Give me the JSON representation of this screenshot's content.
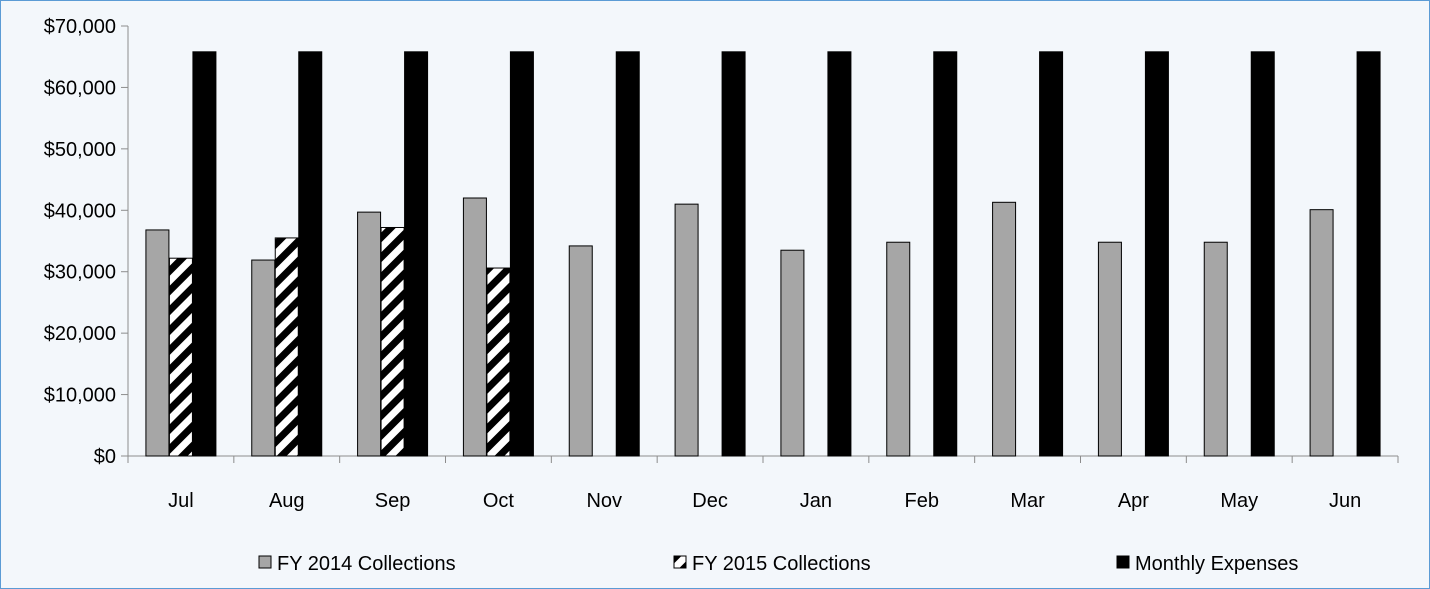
{
  "chart_data": {
    "type": "bar",
    "categories": [
      "Jul",
      "Aug",
      "Sep",
      "Oct",
      "Nov",
      "Dec",
      "Jan",
      "Feb",
      "Mar",
      "Apr",
      "May",
      "Jun"
    ],
    "series": [
      {
        "name": "FY 2014 Collections",
        "values": [
          36800,
          31900,
          39700,
          42000,
          34200,
          41000,
          33500,
          34800,
          41300,
          34800,
          34800,
          40100
        ],
        "color": "#a6a6a6",
        "pattern": "solid"
      },
      {
        "name": "FY 2015 Collections",
        "values": [
          32200,
          35500,
          37200,
          30600,
          null,
          null,
          null,
          null,
          null,
          null,
          null,
          null
        ],
        "color": "#000000",
        "pattern": "diagonal-stripes"
      },
      {
        "name": "Monthly Expenses",
        "values": [
          65800,
          65800,
          65800,
          65800,
          65800,
          65800,
          65800,
          65800,
          65800,
          65800,
          65800,
          65800
        ],
        "color": "#000000",
        "pattern": "solid"
      }
    ],
    "yticks": [
      "$0",
      "$10,000",
      "$20,000",
      "$30,000",
      "$40,000",
      "$50,000",
      "$60,000",
      "$70,000"
    ],
    "ylim": [
      0,
      70000
    ],
    "title": "",
    "xlabel": "",
    "ylabel": "",
    "grid": false,
    "legend_position": "bottom"
  }
}
